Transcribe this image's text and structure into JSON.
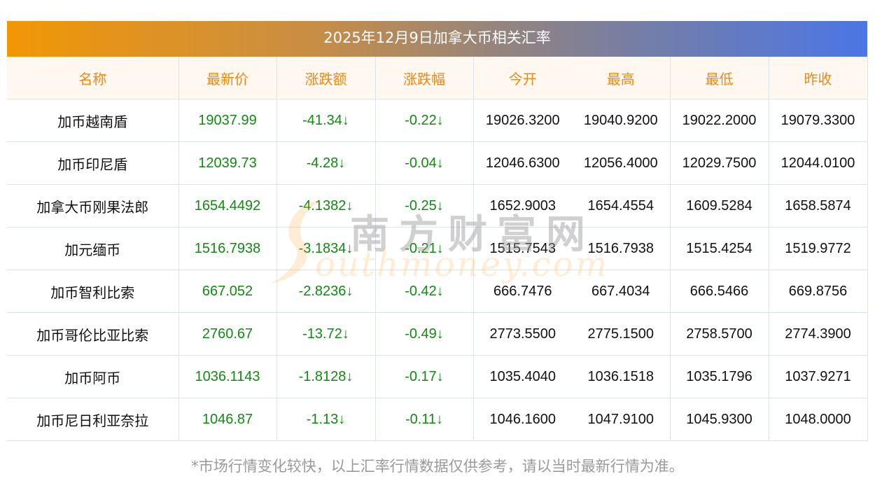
{
  "title": "2025年12月9日加拿大币相关汇率",
  "colors": {
    "header_text": "#f5870c",
    "up_down_green": "#128a12",
    "title_gradient_start": "#f29705",
    "title_gradient_end": "#4b76e6"
  },
  "columns": [
    "名称",
    "最新价",
    "涨跌额",
    "涨跌幅",
    "今开",
    "最高",
    "最低",
    "昨收"
  ],
  "rows": [
    {
      "name": "加币越南盾",
      "latest": "19037.99",
      "change": "-41.34↓",
      "change_pct": "-0.22↓",
      "open": "19026.3200",
      "high": "19040.9200",
      "low": "19022.2000",
      "prev_close": "19079.3300"
    },
    {
      "name": "加币印尼盾",
      "latest": "12039.73",
      "change": "-4.28↓",
      "change_pct": "-0.04↓",
      "open": "12046.6300",
      "high": "12056.4000",
      "low": "12029.7500",
      "prev_close": "12044.0100"
    },
    {
      "name": "加拿大币刚果法郎",
      "latest": "1654.4492",
      "change": "-4.1382↓",
      "change_pct": "-0.25↓",
      "open": "1652.9003",
      "high": "1654.4554",
      "low": "1609.5284",
      "prev_close": "1658.5874"
    },
    {
      "name": "加元缅币",
      "latest": "1516.7938",
      "change": "-3.1834↓",
      "change_pct": "-0.21↓",
      "open": "1515.7543",
      "high": "1516.7938",
      "low": "1515.4254",
      "prev_close": "1519.9772"
    },
    {
      "name": "加币智利比索",
      "latest": "667.052",
      "change": "-2.8236↓",
      "change_pct": "-0.42↓",
      "open": "666.7476",
      "high": "667.4034",
      "low": "666.5466",
      "prev_close": "669.8756"
    },
    {
      "name": "加币哥伦比亚比索",
      "latest": "2760.67",
      "change": "-13.72↓",
      "change_pct": "-0.49↓",
      "open": "2773.5500",
      "high": "2775.1500",
      "low": "2758.5700",
      "prev_close": "2774.3900"
    },
    {
      "name": "加币阿币",
      "latest": "1036.1143",
      "change": "-1.8128↓",
      "change_pct": "-0.17↓",
      "open": "1035.4040",
      "high": "1036.1518",
      "low": "1035.1796",
      "prev_close": "1037.9271"
    },
    {
      "name": "加币尼日利亚奈拉",
      "latest": "1046.87",
      "change": "-1.13↓",
      "change_pct": "-0.11↓",
      "open": "1046.1600",
      "high": "1047.9100",
      "low": "1045.9300",
      "prev_close": "1048.0000"
    }
  ],
  "watermark": {
    "cn": "南方财富网",
    "en": "outhmoney.com"
  },
  "footnote": "*市场行情变化较快，以上汇率行情数据仅供参考，请以当时最新行情为准。"
}
